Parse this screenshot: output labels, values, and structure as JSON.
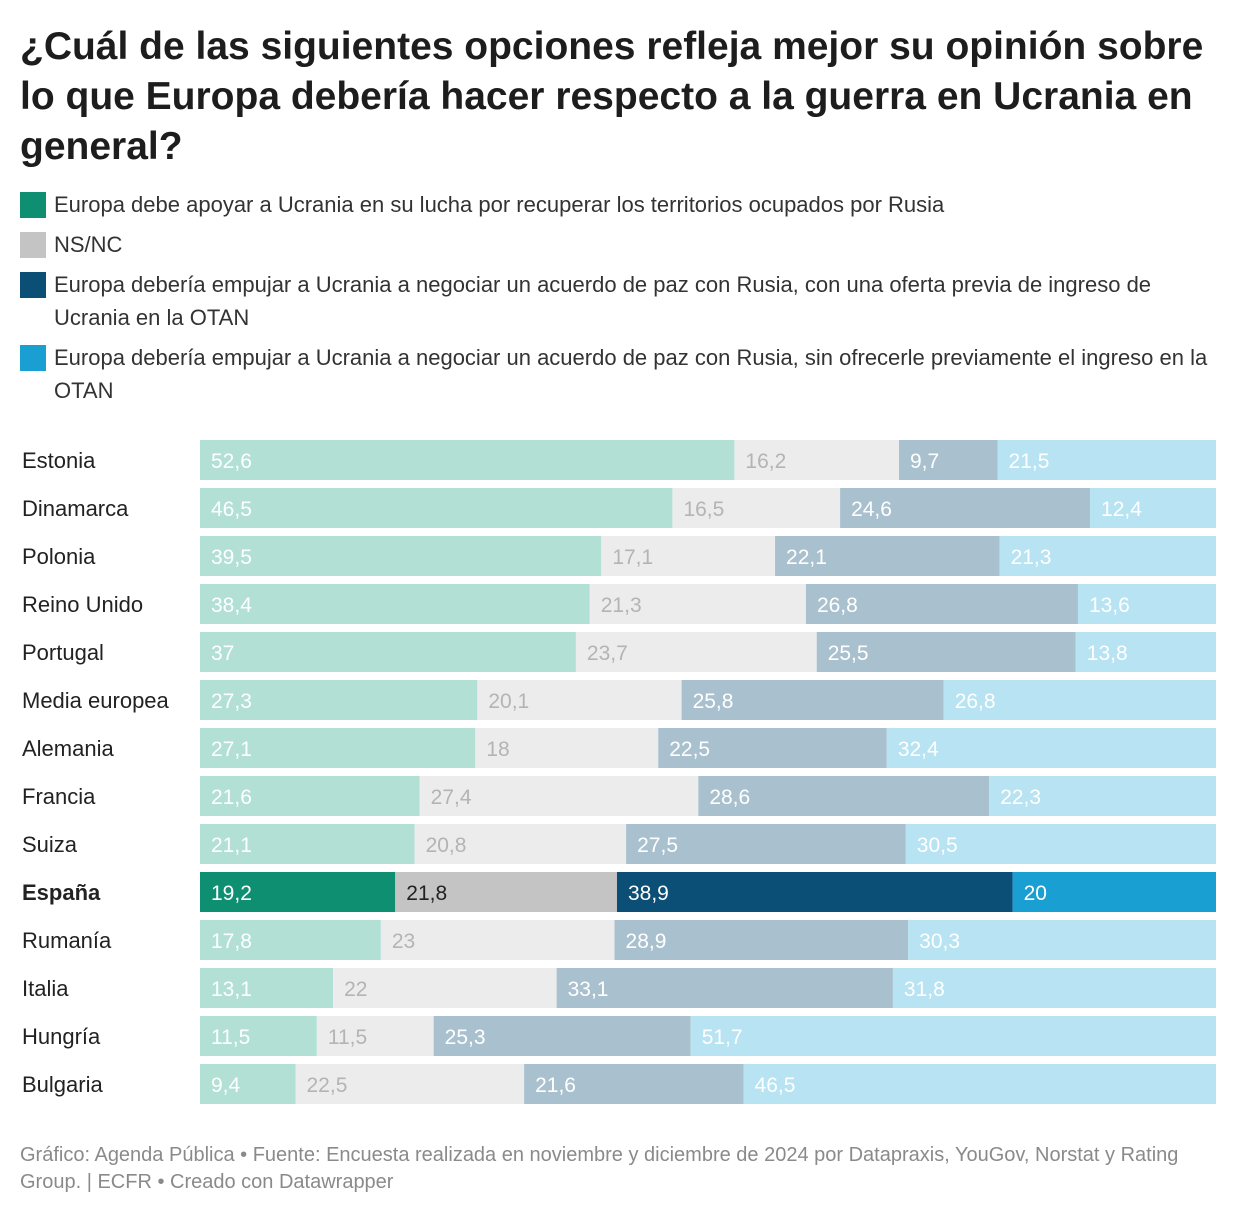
{
  "title": "¿Cuál de las siguientes opciones refleja mejor su opinión sobre lo que Europa debería hacer respecto a la guerra en Ucrania en general?",
  "legend": [
    {
      "label": "Europa debe apoyar a Ucrania en su lucha por recuperar los territorios ocupados por Rusia",
      "color": "#0f8f72"
    },
    {
      "label": "NS/NC",
      "color": "#c4c4c4"
    },
    {
      "label": "Europa debería empujar a Ucrania a negociar un acuerdo de paz con Rusia, con una oferta previa de ingreso de Ucrania en la OTAN",
      "color": "#0b4e76"
    },
    {
      "label": "Europa debería empujar a Ucrania a negociar un acuerdo de paz con Rusia, sin ofrecerle previamente el ingreso en la OTAN",
      "color": "#1a9fd2"
    }
  ],
  "chart_data": {
    "type": "bar",
    "orientation": "horizontal",
    "stacked": true,
    "unit": "%",
    "categories": [
      "Estonia",
      "Dinamarca",
      "Polonia",
      "Reino Unido",
      "Portugal",
      "Media europea",
      "Alemania",
      "Francia",
      "Suiza",
      "España",
      "Rumanía",
      "Italia",
      "Hungría",
      "Bulgaria"
    ],
    "highlight": "España",
    "series": [
      {
        "name": "Europa debe apoyar a Ucrania en su lucha por recuperar los territorios ocupados por Rusia",
        "values": [
          52.6,
          46.5,
          39.5,
          38.4,
          37,
          27.3,
          27.1,
          21.6,
          21.1,
          19.2,
          17.8,
          13.1,
          11.5,
          9.4
        ]
      },
      {
        "name": "NS/NC",
        "values": [
          16.2,
          16.5,
          17.1,
          21.3,
          23.7,
          20.1,
          18,
          27.4,
          20.8,
          21.8,
          23,
          22,
          11.5,
          22.5
        ]
      },
      {
        "name": "Europa debería empujar a Ucrania a negociar un acuerdo de paz con Rusia, con una oferta previa de ingreso de Ucrania en la OTAN",
        "values": [
          9.7,
          24.6,
          22.1,
          26.8,
          25.5,
          25.8,
          22.5,
          28.6,
          27.5,
          38.9,
          28.9,
          33.1,
          25.3,
          21.6
        ]
      },
      {
        "name": "Europa debería empujar a Ucrania a negociar un acuerdo de paz con Rusia, sin ofrecerle previamente el ingreso en la OTAN",
        "values": [
          21.5,
          12.4,
          21.3,
          13.6,
          13.8,
          26.8,
          32.4,
          22.3,
          30.5,
          20,
          30.3,
          31.8,
          51.7,
          46.5
        ]
      }
    ],
    "muted_colors": [
      "#b3e0d4",
      "#ececec",
      "#a9c1cf",
      "#b8e3f2"
    ],
    "muted_label_colors": [
      "#ffffff",
      "#b4b4b4",
      "#ffffff",
      "#ffffff"
    ],
    "highlight_label_colors": [
      "#ffffff",
      "#222222",
      "#ffffff",
      "#ffffff"
    ]
  },
  "footer": "Gráfico: Agenda Pública • Fuente: Encuesta realizada en noviembre y diciembre de 2024 por Datapraxis, YouGov, Norstat y Rating Group. | ECFR • Creado con Datawrapper"
}
